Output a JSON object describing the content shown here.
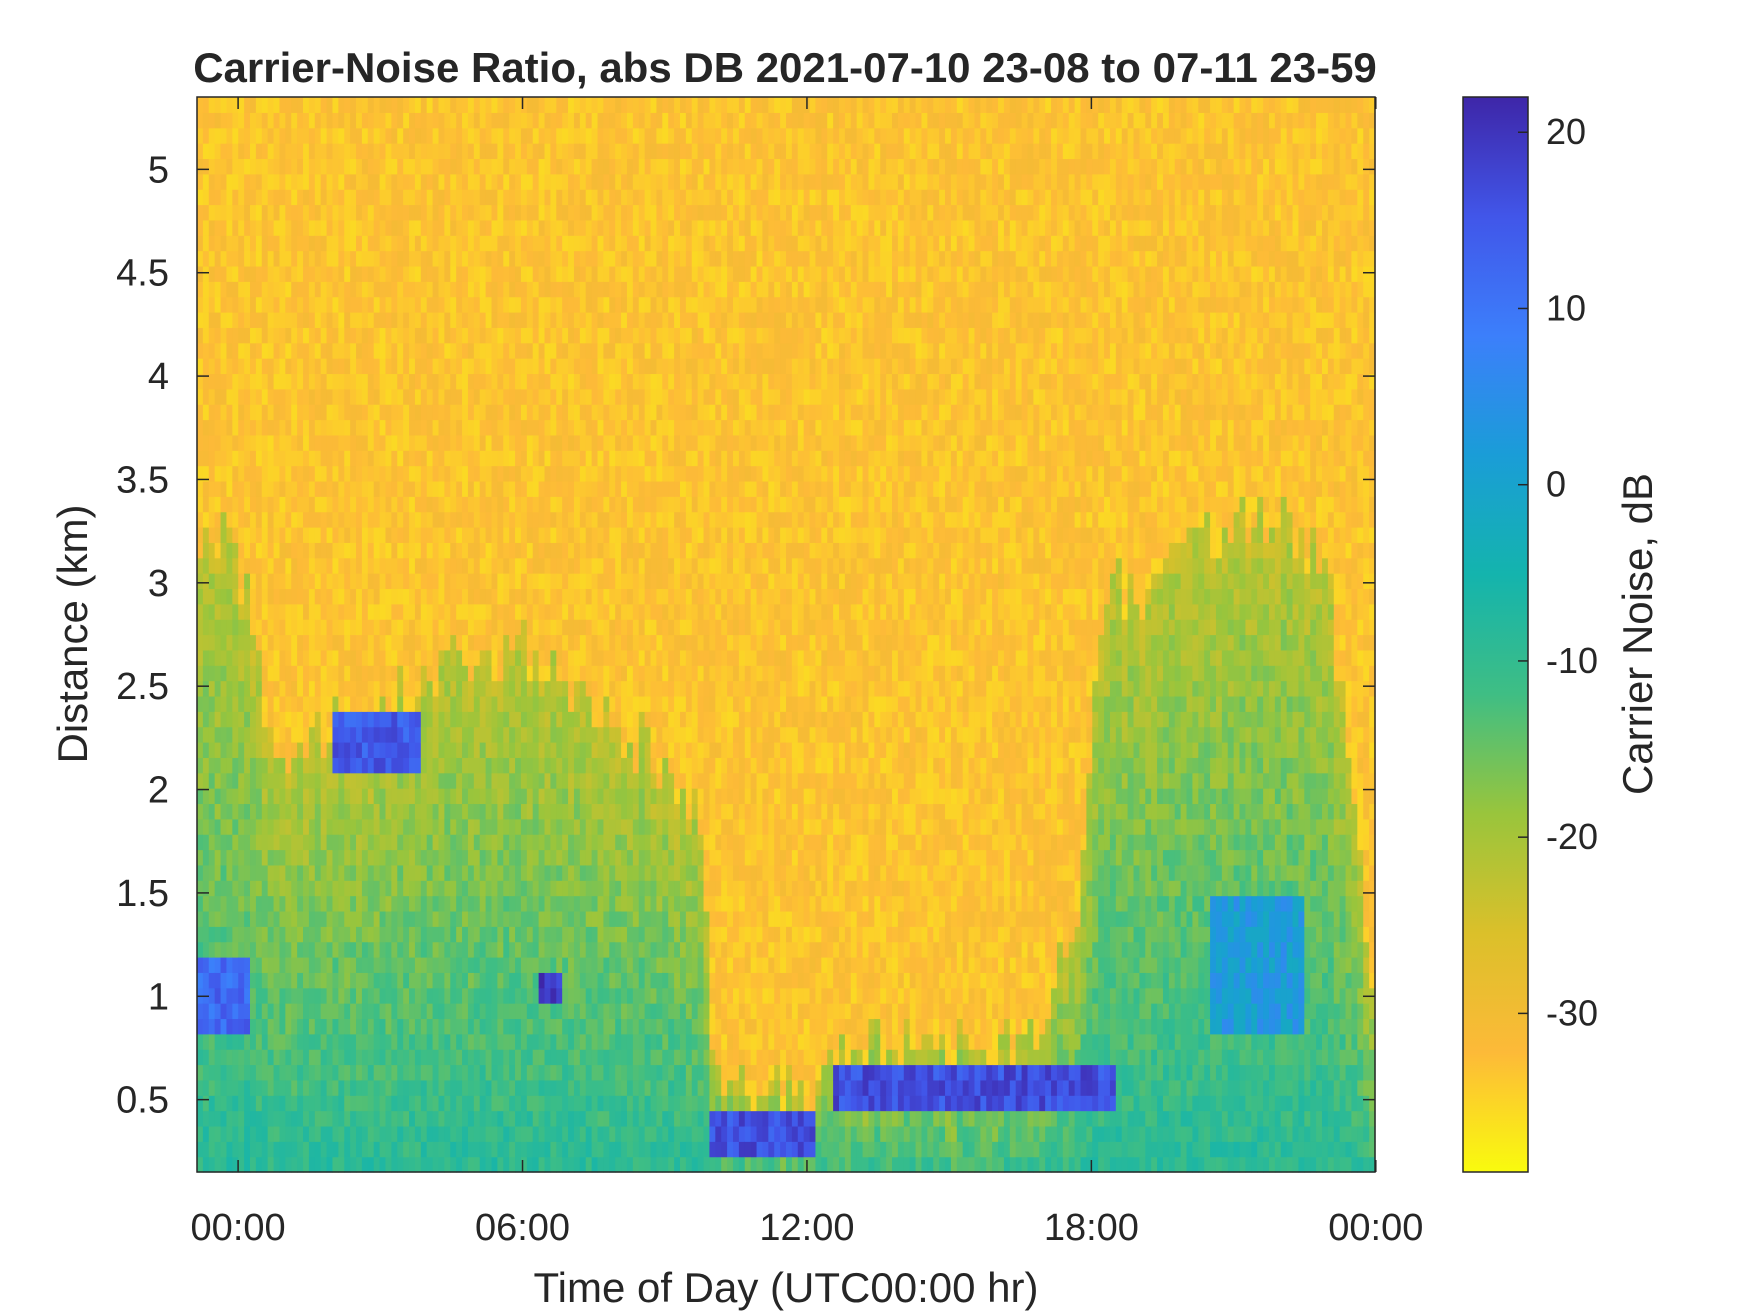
{
  "chart_data": {
    "type": "heatmap",
    "title": "Carrier-Noise Ratio, abs DB 2021-07-10 23-08 to 07-11 23-59",
    "xlabel": "Time of Day (UTC00:00 hr)",
    "ylabel": "Distance (km)",
    "colorbar_label": "Carrier Noise, dB",
    "x_unit": "hours from 00:00 UTC 2021-07-11",
    "xlim": [
      -0.867,
      23.983
    ],
    "ylim": [
      0.15,
      5.35
    ],
    "clim": [
      -39,
      22
    ],
    "x_ticks": [
      0,
      6,
      12,
      18,
      24
    ],
    "x_tick_labels": [
      "00:00",
      "06:00",
      "12:00",
      "18:00",
      "00:00"
    ],
    "y_ticks": [
      0.5,
      1,
      1.5,
      2,
      2.5,
      3,
      3.5,
      4,
      4.5,
      5
    ],
    "y_tick_labels": [
      "0.5",
      "1",
      "1.5",
      "2",
      "2.5",
      "3",
      "3.5",
      "4",
      "4.5",
      "5"
    ],
    "cb_ticks": [
      -30,
      -20,
      -10,
      0,
      10,
      20
    ],
    "cb_tick_labels": [
      "-30",
      "-20",
      "-10",
      "0",
      "10",
      "20"
    ],
    "colormap": "parula-reversed",
    "colormap_stops": [
      "#f9fb0e",
      "#fdba38",
      "#dbc02a",
      "#99c53c",
      "#3fbe84",
      "#14b4ad",
      "#1a9dd7",
      "#3c7ffb",
      "#4156e9",
      "#3e26a8"
    ],
    "background_level_db": -33,
    "signal_height_profile_km": [
      [
        -0.867,
        3.2
      ],
      [
        0,
        3.1
      ],
      [
        0.4,
        2.6
      ],
      [
        0.8,
        2.2
      ],
      [
        1.5,
        2.2
      ],
      [
        2.5,
        2.3
      ],
      [
        4,
        2.55
      ],
      [
        6,
        2.7
      ],
      [
        7,
        2.45
      ],
      [
        8,
        2.35
      ],
      [
        9,
        2.1
      ],
      [
        9.8,
        1.9
      ],
      [
        10,
        0.55
      ],
      [
        11,
        0.5
      ],
      [
        12,
        0.55
      ],
      [
        13,
        0.75
      ],
      [
        15,
        0.75
      ],
      [
        17,
        0.8
      ],
      [
        17.8,
        1.5
      ],
      [
        18,
        2.4
      ],
      [
        18.5,
        3.0
      ],
      [
        19,
        2.9
      ],
      [
        20,
        3.2
      ],
      [
        21,
        3.2
      ],
      [
        22,
        3.4
      ],
      [
        23,
        3.0
      ],
      [
        23.983,
        0.9
      ]
    ],
    "notable_features": [
      {
        "x_range": [
          2,
          3.8
        ],
        "y_range": [
          2.05,
          2.35
        ],
        "level_db": 14
      },
      {
        "x_range": [
          6.3,
          6.8
        ],
        "y_range": [
          0.95,
          1.1
        ],
        "level_db": 20
      },
      {
        "x_range": [
          10,
          12.2
        ],
        "y_range": [
          0.2,
          0.45
        ],
        "level_db": 16
      },
      {
        "x_range": [
          12.6,
          18.5
        ],
        "y_range": [
          0.45,
          0.7
        ],
        "level_db": 16
      },
      {
        "x_range": [
          20.5,
          22.5
        ],
        "y_range": [
          0.8,
          1.5
        ],
        "level_db": 2
      },
      {
        "x_range": [
          -0.867,
          0.3
        ],
        "y_range": [
          0.8,
          1.2
        ],
        "level_db": 12
      }
    ]
  }
}
